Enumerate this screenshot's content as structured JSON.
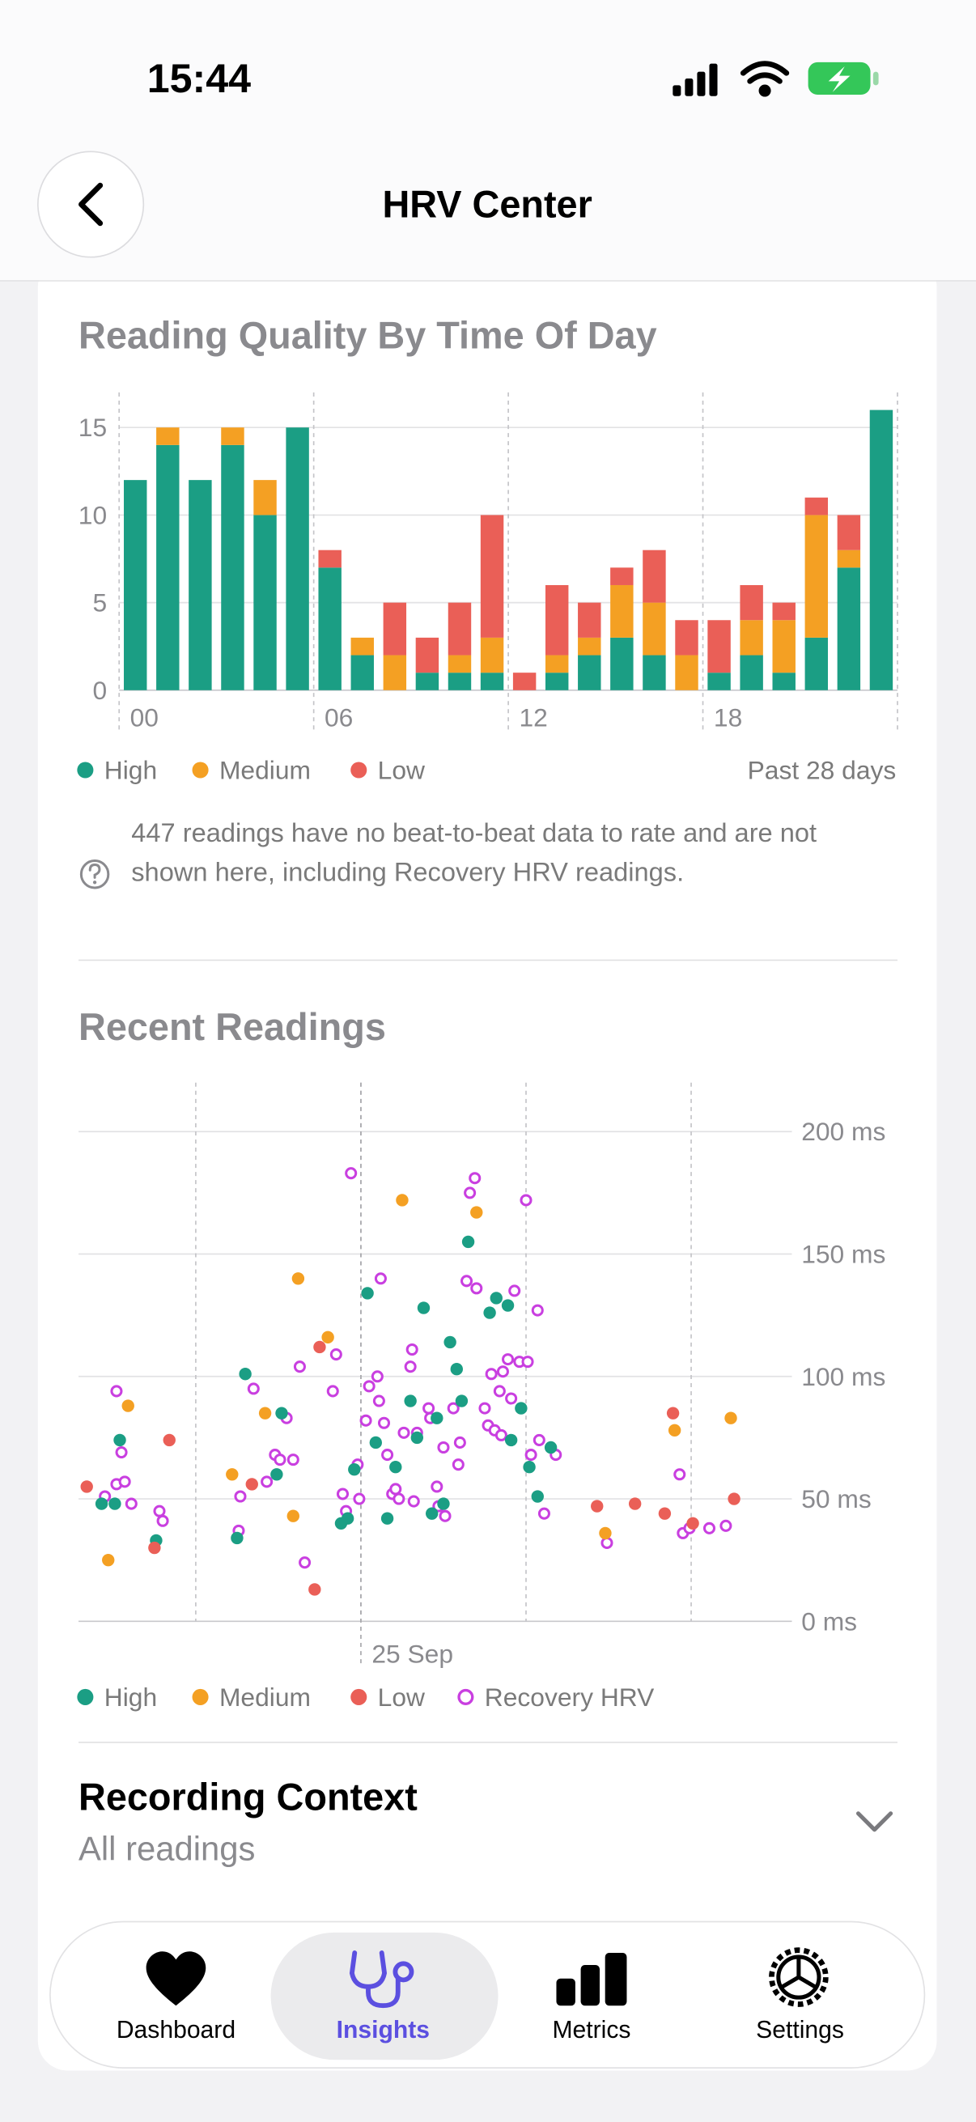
{
  "status_bar": {
    "time": "15:44"
  },
  "header": {
    "title": "HRV Center"
  },
  "chart_data": [
    {
      "type": "bar",
      "stacked": true,
      "title": "Reading Quality By Time Of Day",
      "annotation": "Past 28 days",
      "footnote": "447 readings have no beat-to-beat data to rate and are not shown here, including Recovery HRV readings.",
      "categories": [
        "00",
        null,
        null,
        null,
        null,
        null,
        "06",
        null,
        null,
        null,
        null,
        null,
        "12",
        null,
        null,
        null,
        null,
        null,
        "18",
        null,
        null,
        null,
        null,
        null
      ],
      "series": [
        {
          "name": "High",
          "color": "#1b9e84",
          "values": [
            12,
            14,
            12,
            14,
            10,
            15,
            7,
            2,
            0,
            1,
            1,
            1,
            0,
            1,
            2,
            3,
            2,
            0,
            1,
            2,
            1,
            3,
            7,
            16
          ]
        },
        {
          "name": "Medium",
          "color": "#f4a023",
          "values": [
            0,
            1,
            0,
            1,
            2,
            0,
            0,
            1,
            2,
            0,
            1,
            2,
            0,
            1,
            1,
            3,
            3,
            2,
            0,
            2,
            3,
            7,
            1,
            0
          ]
        },
        {
          "name": "Low",
          "color": "#ea5f57",
          "values": [
            0,
            0,
            0,
            0,
            0,
            0,
            1,
            0,
            3,
            2,
            3,
            7,
            1,
            4,
            2,
            1,
            3,
            2,
            3,
            2,
            1,
            1,
            2,
            0
          ]
        }
      ],
      "ylim": [
        0,
        17
      ],
      "yticks": [
        0,
        5,
        10,
        15
      ],
      "grid": true
    },
    {
      "type": "scatter",
      "title": "Recent Readings",
      "xlim": [
        23.29,
        27.61
      ],
      "xticks": [
        {
          "value": 25,
          "label": "25 Sep"
        }
      ],
      "xgrid": [
        24,
        25,
        26,
        27
      ],
      "ylim": [
        0,
        220
      ],
      "yticks": [
        {
          "value": 0,
          "label": "0 ms"
        },
        {
          "value": 50,
          "label": "50 ms"
        },
        {
          "value": 100,
          "label": "100 ms"
        },
        {
          "value": 150,
          "label": "150 ms"
        },
        {
          "value": 200,
          "label": "200 ms"
        }
      ],
      "grid": true,
      "series": [
        {
          "name": "High",
          "color": "#1b9e84",
          "marker": "dot",
          "x": [
            23.43,
            23.51,
            23.54,
            23.76,
            24.25,
            24.3,
            24.49,
            24.52,
            24.88,
            24.92,
            24.96,
            25.04,
            25.09,
            25.16,
            25.21,
            25.3,
            25.38,
            25.34,
            25.43,
            25.46,
            25.5,
            25.54,
            25.58,
            25.61,
            25.65,
            25.78,
            25.82,
            25.89,
            25.91,
            25.97,
            26.02,
            26.07,
            26.15
          ],
          "y": [
            48,
            48,
            74,
            33,
            34,
            101,
            60,
            85,
            40,
            42,
            62,
            134,
            73,
            42,
            63,
            90,
            128,
            75,
            44,
            83,
            48,
            114,
            103,
            90,
            155,
            126,
            132,
            129,
            74,
            87,
            63,
            51,
            71
          ]
        },
        {
          "name": "Medium",
          "color": "#f4a023",
          "marker": "dot",
          "x": [
            23.47,
            23.59,
            24.22,
            24.42,
            24.59,
            24.62,
            24.8,
            25.25,
            25.7,
            26.48,
            26.9,
            27.24
          ],
          "y": [
            25,
            88,
            60,
            85,
            43,
            140,
            116,
            172,
            167,
            36,
            78,
            83
          ]
        },
        {
          "name": "Low",
          "color": "#ea5f57",
          "marker": "dot",
          "x": [
            23.34,
            23.75,
            23.84,
            24.34,
            24.72,
            24.75,
            26.43,
            26.66,
            26.84,
            26.89,
            27.01,
            27.26
          ],
          "y": [
            55,
            30,
            74,
            56,
            13,
            112,
            47,
            48,
            44,
            85,
            40,
            50
          ]
        },
        {
          "name": "Recovery HRV",
          "color": "#c93fe0",
          "marker": "ring",
          "x": [
            23.52,
            23.55,
            23.45,
            23.52,
            23.57,
            23.61,
            23.8,
            23.78,
            24.26,
            24.27,
            24.35,
            24.43,
            24.48,
            24.51,
            24.55,
            24.59,
            24.63,
            24.66,
            24.83,
            24.85,
            24.89,
            24.91,
            24.94,
            24.98,
            24.99,
            25.03,
            25.05,
            25.1,
            25.11,
            25.12,
            25.14,
            25.16,
            25.19,
            25.21,
            25.23,
            25.26,
            25.3,
            25.31,
            25.32,
            25.34,
            25.41,
            25.42,
            25.46,
            25.47,
            25.5,
            25.51,
            25.56,
            25.59,
            25.6,
            25.64,
            25.66,
            25.69,
            25.7,
            25.75,
            25.77,
            25.79,
            25.81,
            25.84,
            25.85,
            25.86,
            25.89,
            25.91,
            25.93,
            25.96,
            26.0,
            26.01,
            26.03,
            26.07,
            26.08,
            26.11,
            26.18,
            26.49,
            26.93,
            26.95,
            26.99,
            27.11,
            27.21
          ],
          "y": [
            94,
            69,
            51,
            56,
            57,
            48,
            41,
            45,
            37,
            51,
            95,
            57,
            68,
            66,
            83,
            66,
            104,
            24,
            94,
            109,
            52,
            45,
            183,
            64,
            50,
            82,
            96,
            100,
            90,
            140,
            81,
            68,
            52,
            54,
            50,
            77,
            104,
            111,
            49,
            77,
            87,
            83,
            55,
            47,
            71,
            43,
            87,
            64,
            73,
            139,
            175,
            181,
            136,
            87,
            80,
            101,
            78,
            94,
            76,
            102,
            107,
            91,
            135,
            106,
            172,
            106,
            68,
            127,
            74,
            44,
            68,
            32,
            60,
            36,
            38,
            38,
            39
          ]
        }
      ]
    }
  ],
  "context": {
    "title": "Recording Context",
    "subtitle": "All readings"
  },
  "tab_bar": {
    "tabs": [
      "Dashboard",
      "Insights",
      "Metrics",
      "Settings"
    ],
    "selected": 1
  }
}
